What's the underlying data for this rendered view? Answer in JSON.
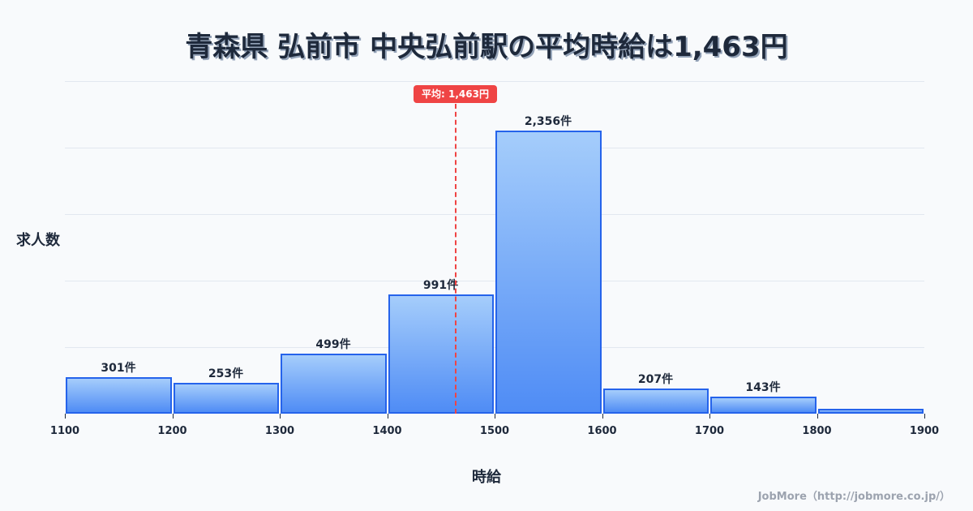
{
  "title": "青森県 弘前市 中央弘前駅の平均時給は1,463円",
  "y_axis_label": "求人数",
  "x_axis_label": "時給",
  "average_badge": "平均: 1,463円",
  "footer": "JobMore（http://jobmore.co.jp/）",
  "colors": {
    "bar_border": "#2563eb",
    "bar_top": "#a5cdfb",
    "bar_bottom": "#4f8cf5",
    "average": "#ef4444",
    "text": "#1e293b"
  },
  "bars": [
    {
      "range": "1100-1200",
      "value": 301,
      "label": "301件"
    },
    {
      "range": "1200-1300",
      "value": 253,
      "label": "253件"
    },
    {
      "range": "1300-1400",
      "value": 499,
      "label": "499件"
    },
    {
      "range": "1400-1500",
      "value": 991,
      "label": "991件"
    },
    {
      "range": "1500-1600",
      "value": 2356,
      "label": "2,356件"
    },
    {
      "range": "1600-1700",
      "value": 207,
      "label": "207件"
    },
    {
      "range": "1700-1800",
      "value": 143,
      "label": "143件"
    },
    {
      "range": "1800-1900",
      "value": 40,
      "label": ""
    }
  ],
  "ticks": [
    "1100",
    "1200",
    "1300",
    "1400",
    "1500",
    "1600",
    "1700",
    "1800",
    "1900"
  ],
  "chart_data": {
    "type": "bar",
    "title": "青森県 弘前市 中央弘前駅の平均時給は1,463円",
    "xlabel": "時給",
    "ylabel": "求人数",
    "categories": [
      "1100-1200",
      "1200-1300",
      "1300-1400",
      "1400-1500",
      "1500-1600",
      "1600-1700",
      "1700-1800",
      "1800-1900"
    ],
    "values": [
      301,
      253,
      499,
      991,
      2356,
      207,
      143,
      40
    ],
    "x_ticks": [
      1100,
      1200,
      1300,
      1400,
      1500,
      1600,
      1700,
      1800,
      1900
    ],
    "ylim": [
      0,
      2764
    ],
    "grid": true,
    "annotations": [
      {
        "type": "vline",
        "x": 1463,
        "label": "平均: 1,463円",
        "style": "dashed",
        "color": "#ef4444"
      }
    ]
  }
}
